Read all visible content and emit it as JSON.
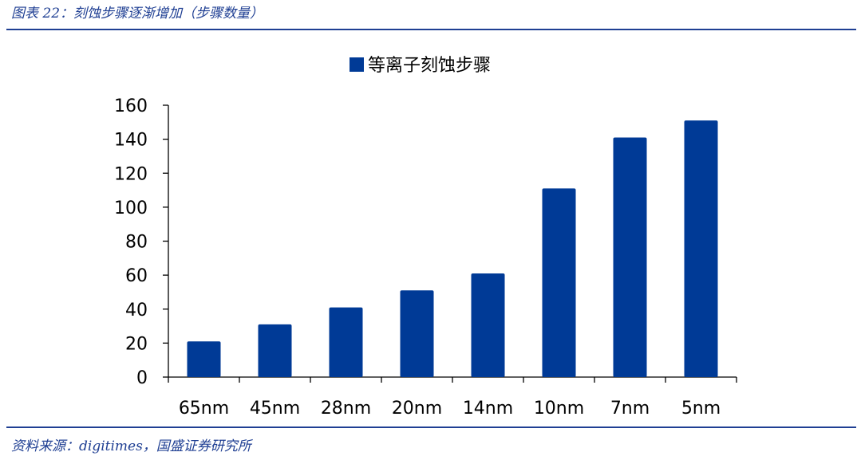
{
  "figure": {
    "title": "图表 22：刻蚀步骤逐渐增加（步骤数量）",
    "source": "资料来源：digitimes，国盛证券研究所"
  },
  "colors": {
    "bar": "#003a96",
    "rule": "#1f3f93",
    "caption_text": "#1f3f93"
  },
  "chart_data": {
    "type": "bar",
    "categories": [
      "65nm",
      "45nm",
      "28nm",
      "20nm",
      "14nm",
      "10nm",
      "7nm",
      "5nm"
    ],
    "series": [
      {
        "name": "等离子刻蚀步骤",
        "values": [
          21,
          31,
          41,
          51,
          61,
          111,
          141,
          151
        ]
      }
    ],
    "ylim": [
      0,
      160
    ],
    "yticks": [
      0,
      20,
      40,
      60,
      80,
      100,
      120,
      140,
      160
    ],
    "grid": false,
    "legend": "top-center"
  }
}
